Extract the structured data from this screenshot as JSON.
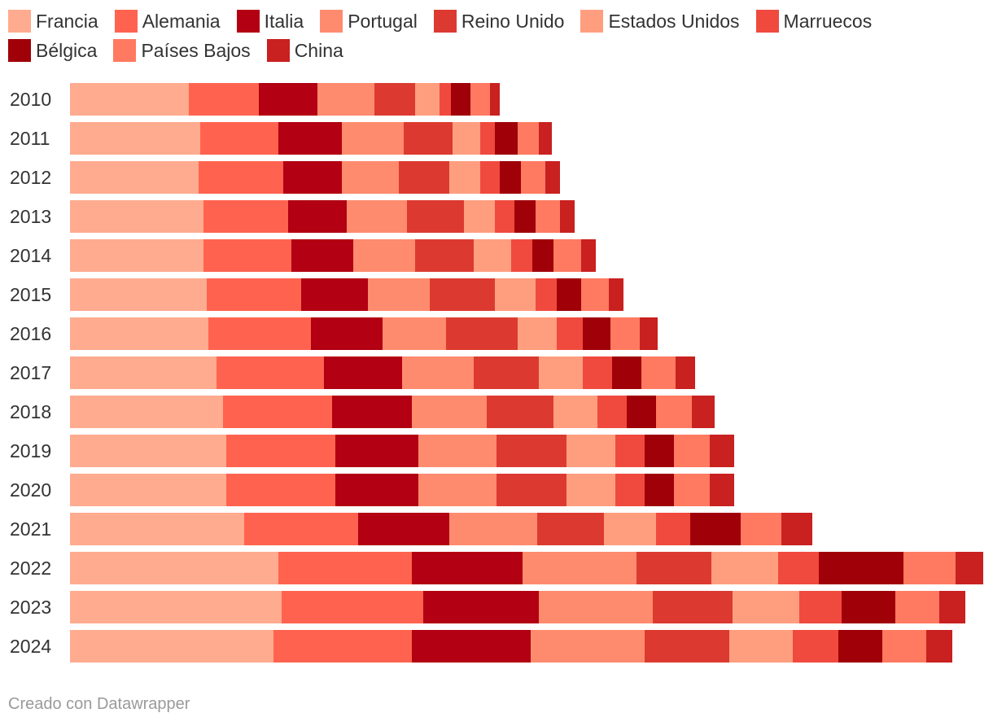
{
  "chart_data": {
    "type": "bar",
    "orientation": "horizontal",
    "stacked": true,
    "categories": [
      "2010",
      "2011",
      "2012",
      "2013",
      "2014",
      "2015",
      "2016",
      "2017",
      "2018",
      "2019",
      "2020",
      "2021",
      "2022",
      "2023",
      "2024"
    ],
    "series": [
      {
        "name": "Francia",
        "color": "#ffab8f",
        "values": [
          146,
          160,
          158,
          164,
          164,
          168,
          170,
          180,
          188,
          192,
          192,
          214,
          256,
          260,
          250
        ]
      },
      {
        "name": "Alemania",
        "color": "#ff634f",
        "values": [
          86,
          96,
          104,
          104,
          108,
          116,
          126,
          132,
          134,
          134,
          134,
          140,
          164,
          174,
          170
        ]
      },
      {
        "name": "Italia",
        "color": "#b30012",
        "values": [
          72,
          78,
          72,
          72,
          76,
          82,
          88,
          96,
          98,
          102,
          102,
          112,
          136,
          142,
          146
        ]
      },
      {
        "name": "Portugal",
        "color": "#ff8b6e",
        "values": [
          70,
          76,
          70,
          74,
          76,
          76,
          78,
          88,
          92,
          96,
          96,
          108,
          140,
          140,
          140
        ]
      },
      {
        "name": "Reino Unido",
        "color": "#dc3a30",
        "values": [
          50,
          60,
          62,
          70,
          72,
          80,
          88,
          80,
          82,
          86,
          86,
          82,
          92,
          98,
          104
        ]
      },
      {
        "name": "Estados Unidos",
        "color": "#ff9e7f",
        "values": [
          30,
          34,
          38,
          38,
          46,
          50,
          48,
          54,
          54,
          60,
          60,
          64,
          82,
          82,
          78
        ]
      },
      {
        "name": "Marruecos",
        "color": "#f04a3e",
        "values": [
          14,
          18,
          24,
          24,
          26,
          26,
          32,
          36,
          36,
          36,
          36,
          42,
          50,
          52,
          56
        ]
      },
      {
        "name": "Bélgica",
        "color": "#a00008",
        "values": [
          24,
          28,
          26,
          26,
          26,
          30,
          34,
          36,
          36,
          36,
          36,
          62,
          104,
          66,
          54
        ]
      },
      {
        "name": "Países Bajos",
        "color": "#ff7a60",
        "values": [
          24,
          26,
          30,
          30,
          34,
          34,
          36,
          42,
          44,
          44,
          44,
          50,
          64,
          54,
          54
        ]
      },
      {
        "name": "China",
        "color": "#c92020",
        "values": [
          12,
          16,
          18,
          18,
          18,
          18,
          22,
          24,
          28,
          30,
          30,
          38,
          34,
          32,
          32
        ]
      }
    ],
    "xlim": [
      0,
      1122
    ],
    "grid": false,
    "legend": "top"
  },
  "footer": "Creado con Datawrapper"
}
